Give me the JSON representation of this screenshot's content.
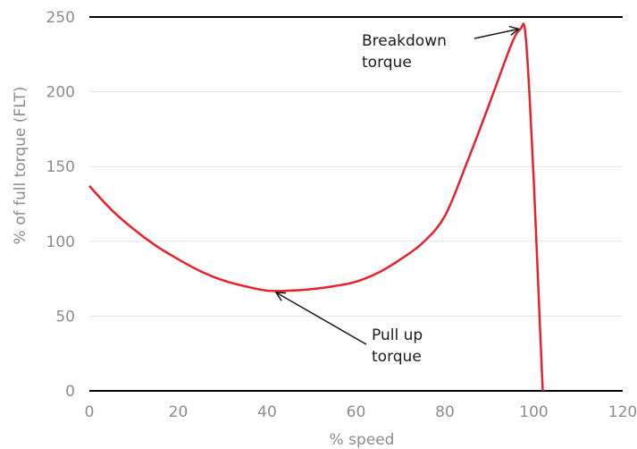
{
  "chart_data": {
    "type": "line",
    "xlabel": "% speed",
    "ylabel": "% of full torque (FLT)",
    "xlim": [
      0,
      120
    ],
    "ylim": [
      0,
      250
    ],
    "xticks": [
      0,
      20,
      40,
      60,
      80,
      100,
      120
    ],
    "yticks": [
      0,
      50,
      100,
      150,
      200,
      250
    ],
    "grid": "horizontal",
    "series": [
      {
        "color": "#e8222d",
        "x": [
          0,
          5,
          10,
          15,
          20,
          25,
          30,
          35,
          40,
          45,
          50,
          55,
          60,
          65,
          70,
          75,
          80,
          85,
          90,
          95,
          97,
          98,
          99,
          100,
          101,
          102
        ],
        "y": [
          137,
          121,
          108,
          97,
          88,
          80,
          74,
          70,
          67,
          67,
          68,
          70,
          73,
          79,
          88,
          99,
          117,
          153,
          192,
          232,
          242,
          242,
          200,
          140,
          70,
          0
        ]
      }
    ],
    "annotations": [
      {
        "text": [
          "Breakdown",
          "torque"
        ],
        "x": 97,
        "y": 242
      },
      {
        "text": [
          "Pull up",
          "torque"
        ],
        "x": 42,
        "y": 67
      }
    ]
  }
}
